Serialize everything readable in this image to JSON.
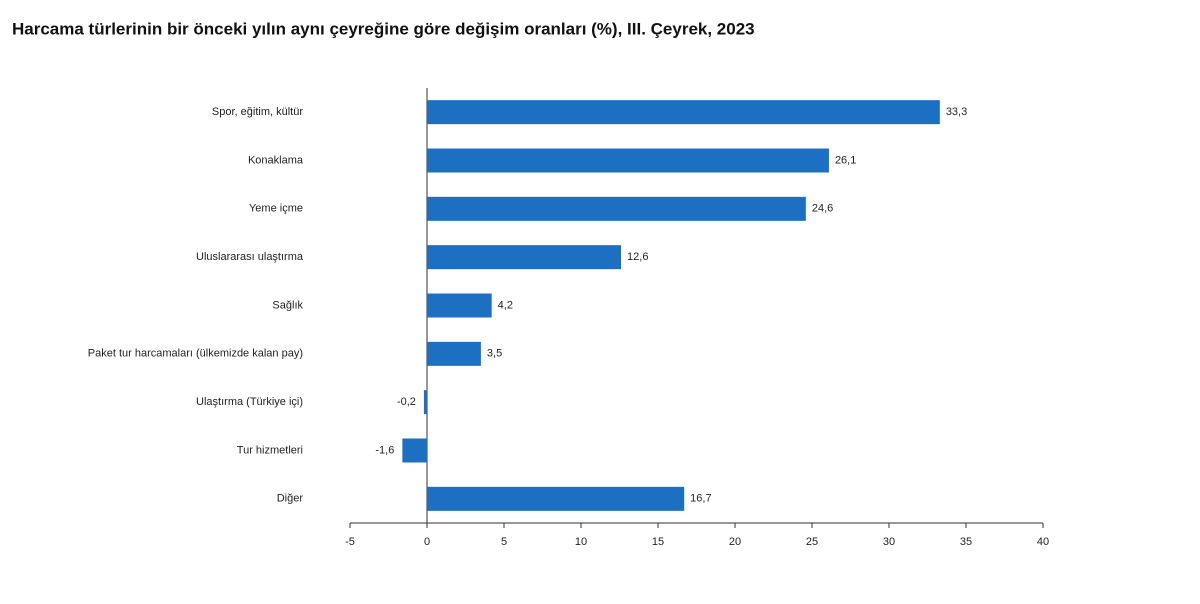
{
  "chart_data": {
    "type": "barh",
    "title": "Harcama türlerinin bir önceki yılın aynı çeyreğine göre değişim oranları (%), III. Çeyrek, 2023",
    "categories": [
      "Spor, eğitim, kültür",
      "Konaklama",
      "Yeme içme",
      "Uluslararası ulaştırma",
      "Sağlık",
      "Paket tur harcamaları (ülkemizde kalan pay)",
      "Ulaştırma (Türkiye içi)",
      "Tur hizmetleri",
      "Diğer"
    ],
    "values": [
      33.3,
      26.1,
      24.6,
      12.6,
      4.2,
      3.5,
      -0.2,
      -1.6,
      16.7
    ],
    "value_labels": [
      "33,3",
      "26,1",
      "24,6",
      "12,6",
      "4,2",
      "3,5",
      "-0,2",
      "-1,6",
      "16,7"
    ],
    "color": "#1c6fc1",
    "xlim": [
      -5,
      40
    ],
    "xticks": [
      -5,
      0,
      5,
      10,
      15,
      20,
      25,
      30,
      35,
      40
    ],
    "grid": false
  }
}
